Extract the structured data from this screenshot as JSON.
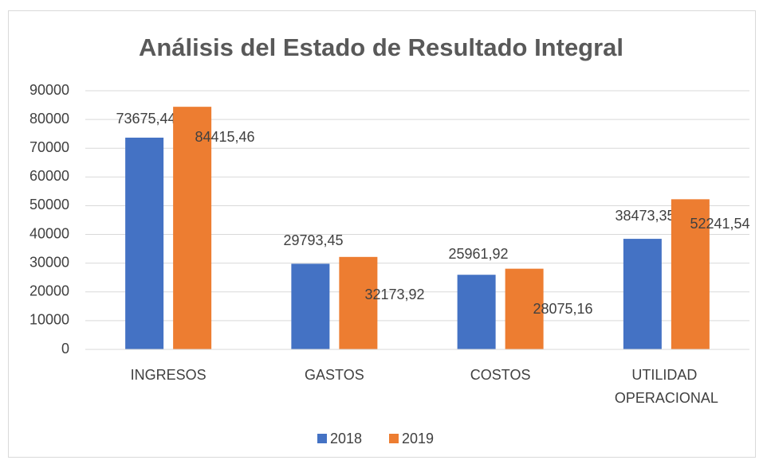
{
  "chart_data": {
    "type": "bar",
    "title": "Análisis del Estado de Resultado Integral",
    "categories": [
      "INGRESOS",
      "GASTOS",
      "COSTOS",
      "UTILIDAD OPERACIONAL"
    ],
    "series": [
      {
        "name": "2018",
        "color": "#4472c4",
        "values": [
          73675.44,
          29793.45,
          25961.92,
          38473.35
        ],
        "value_labels": [
          "73675,44",
          "29793,45",
          "25961,92",
          "38473,35"
        ]
      },
      {
        "name": "2019",
        "color": "#ed7d31",
        "values": [
          84415.46,
          32173.92,
          28075.16,
          52241.54
        ],
        "value_labels": [
          "84415,46",
          "32173,92",
          "28075,16",
          "52241,54"
        ]
      }
    ],
    "ylim": [
      0,
      90000
    ],
    "yticks": [
      0,
      10000,
      20000,
      30000,
      40000,
      50000,
      60000,
      70000,
      80000,
      90000
    ],
    "grid": true,
    "legend": "bottom"
  }
}
